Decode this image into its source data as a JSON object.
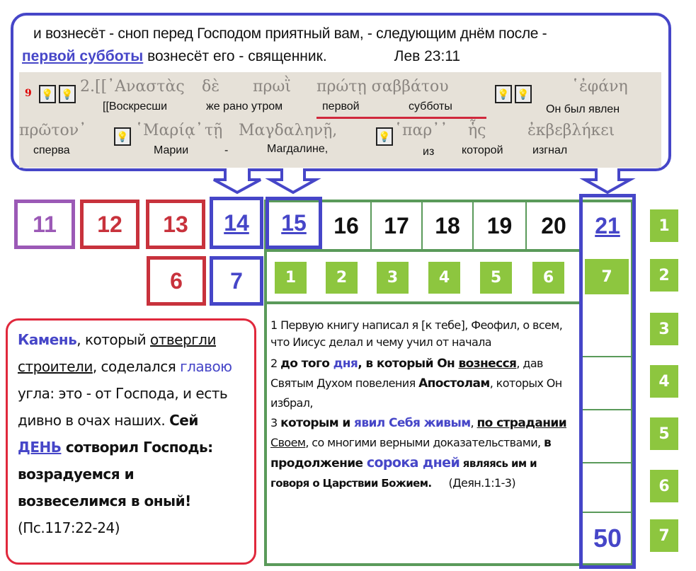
{
  "colors": {
    "blue": "#4646c8",
    "red": "#e0283c",
    "purple": "#9b59b6",
    "green": "#5a9a5a",
    "light_green": "#8dc63f"
  },
  "top": {
    "line1": "и вознесёт - сноп перед Господом приятный вам, - следующим днём после -",
    "line2_highlight": "первой субботы",
    "line2_rest": " вознесёт его - священник.",
    "ref": "Лев 23:11",
    "interlinear": {
      "verse_no": "9",
      "greek1": [
        "2.[[᾿Αναστὰς",
        "δὲ",
        "πρωῒ",
        "πρώτῃ σαββάτου",
        "῾ἐφάνη"
      ],
      "russian1": [
        "[[Воскресши",
        "же рано утром",
        "первой",
        "субботы",
        "Он был явлен"
      ],
      "greek2": [
        "πρῶτον᾿",
        "῾Μαρίᾳ᾿",
        "τῇ",
        "Μαγδαληνῇ,",
        "῾παρ᾿᾿",
        "ἧς",
        "ἐκβεβλήκει"
      ],
      "russian2": [
        "сперва",
        "Марии",
        "-",
        "Магдалине,",
        "из",
        "которой",
        "изгнал"
      ],
      "bulb_icon": "lightbulb-icon"
    }
  },
  "row1": [
    "11",
    "12",
    "13",
    "14",
    "15",
    "16",
    "17",
    "18",
    "19",
    "20",
    "21"
  ],
  "row2": [
    "6",
    "7"
  ],
  "week_days": [
    "1",
    "2",
    "3",
    "4",
    "5",
    "6",
    "7"
  ],
  "weeks": [
    "1",
    "2",
    "3",
    "4",
    "5",
    "6",
    "7"
  ],
  "fifty": "50",
  "acts": {
    "p1": "1 Первую книгу написал я [к тебе], Феофил, о всем, что Иисус делал и чему учил от начала",
    "p2a": "2 ",
    "p2b": "до того ",
    "p2c": "дня",
    "p2d": ", в который Он ",
    "p2e": "вознесся",
    "p2f": ", дав Святым Духом повеления ",
    "p2g": "Апостолам",
    "p2h": ", которых Он избрал,",
    "p3a": "3 ",
    "p3b": "которым и ",
    "p3c": "явил Себя живым",
    "p3d": ", ",
    "p3e": "по страдании",
    "p3f": " Своем",
    "p3g": ", со многими верными доказательствами, ",
    "p3h": "в продолжение ",
    "p3i": "сорока дней",
    "p3j": " являясь им и говоря о Царствии Божием.",
    "p3k": "(Деян.1:1-3)"
  },
  "psalm": {
    "a": "Камень",
    "b": ", который ",
    "c": "отвергли строители",
    "d": ", соделался ",
    "e": "главою",
    "f": " угла: это - от Господа, и есть дивно в очах наших.",
    "g": "Сей ",
    "h": "ДЕНЬ",
    "i": " сотворил Господь: возрадуемся и возвеселимся в оный!",
    "j": "(Пс.117:22-24)"
  }
}
